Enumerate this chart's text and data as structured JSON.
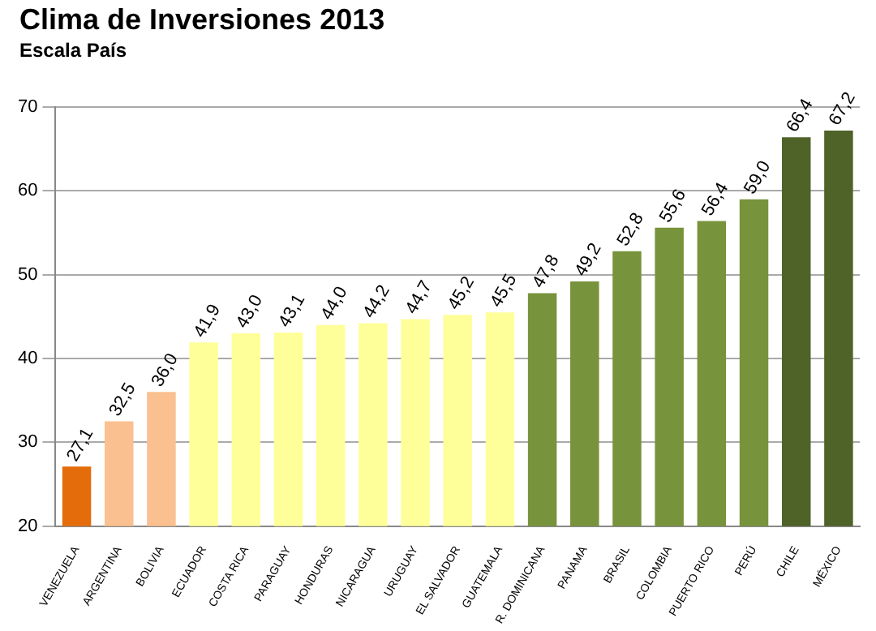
{
  "chart_data": {
    "type": "bar",
    "title": "Clima de Inversiones 2013",
    "subtitle": "Escala País",
    "categories": [
      "VENEZUELA",
      "ARGENTINA",
      "BOLIVIA",
      "ECUADOR",
      "COSTA RICA",
      "PARAGUAY",
      "HONDURAS",
      "NICARAGUA",
      "URUGUAY",
      "EL SALVADOR",
      "GUATEMALA",
      "R. DOMINICANA",
      "PANAMA",
      "BRASIL",
      "COLOMBIA",
      "PUERTO RICO",
      "PERÚ",
      "CHILE",
      "MÉXICO"
    ],
    "values": [
      27.1,
      32.5,
      36.0,
      41.9,
      43.0,
      43.1,
      44.0,
      44.2,
      44.7,
      45.2,
      45.5,
      47.8,
      49.2,
      52.8,
      55.6,
      56.4,
      59.0,
      66.4,
      67.2
    ],
    "value_labels": [
      "27,1",
      "32,5",
      "36,0",
      "41,9",
      "43,0",
      "43,1",
      "44,0",
      "44,2",
      "44,7",
      "45,2",
      "45,5",
      "47,8",
      "49,2",
      "52,8",
      "55,6",
      "56,4",
      "59,0",
      "66,4",
      "67,2"
    ],
    "colors": [
      "#e46c0a",
      "#fac090",
      "#fac090",
      "#ffff99",
      "#ffff99",
      "#ffff99",
      "#ffff99",
      "#ffff99",
      "#ffff99",
      "#ffff99",
      "#ffff99",
      "#77933c",
      "#77933c",
      "#77933c",
      "#77933c",
      "#77933c",
      "#77933c",
      "#4f6228",
      "#4f6228"
    ],
    "ylim": [
      20,
      70
    ],
    "yticks": [
      20,
      30,
      40,
      50,
      60,
      70
    ],
    "grid": "y",
    "legend": false
  }
}
